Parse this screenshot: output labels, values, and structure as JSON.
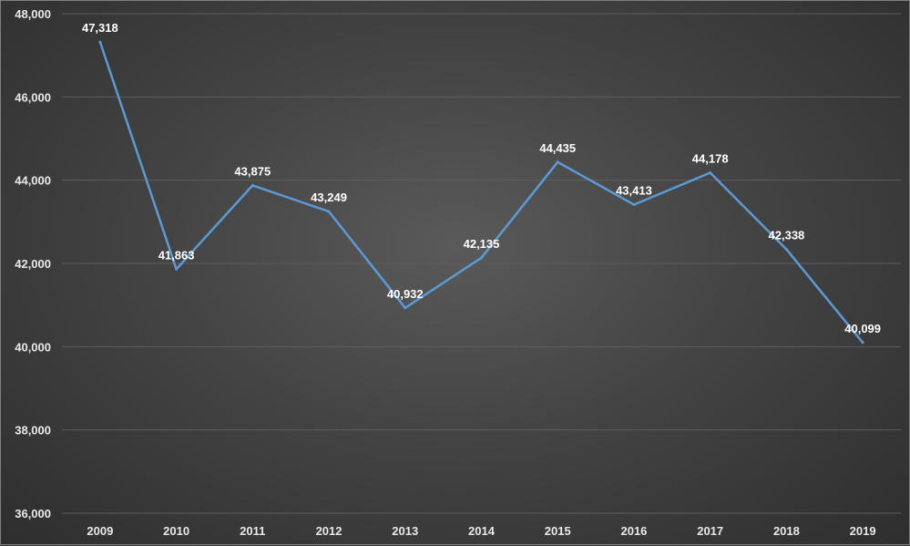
{
  "chart_data": {
    "type": "line",
    "categories": [
      "2009",
      "2010",
      "2011",
      "2012",
      "2013",
      "2014",
      "2015",
      "2016",
      "2017",
      "2018",
      "2019"
    ],
    "series": [
      {
        "values": [
          47318,
          41863,
          43875,
          43249,
          40932,
          42135,
          44435,
          43413,
          44178,
          42338,
          40099
        ],
        "value_labels": [
          "47,318",
          "41,863",
          "43,875",
          "43,249",
          "40,932",
          "42,135",
          "44,435",
          "43,413",
          "44,178",
          "42,338",
          "40,099"
        ],
        "color": "#5b9bd5"
      }
    ],
    "yticks": [
      36000,
      38000,
      40000,
      42000,
      44000,
      46000,
      48000
    ],
    "ytick_labels": [
      "36,000",
      "38,000",
      "40,000",
      "42,000",
      "44,000",
      "46,000",
      "48,000"
    ],
    "ylim": [
      36000,
      48000
    ],
    "grid": true,
    "legend": "none",
    "title": "",
    "xlabel": "",
    "ylabel": ""
  }
}
